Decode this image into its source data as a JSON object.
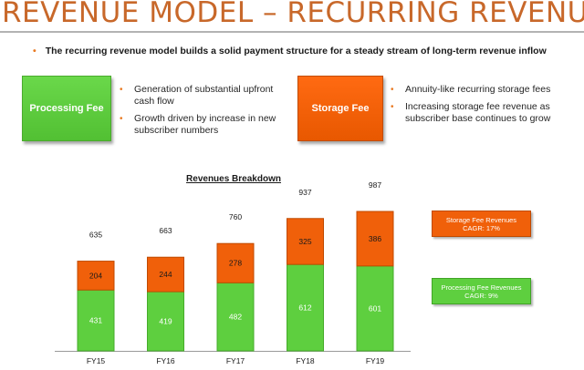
{
  "slide": {
    "title": "REVENUE MODEL – RECURRING REVENUE",
    "lead": "The recurring revenue model builds a solid payment structure for a steady stream of long-term revenue inflow"
  },
  "processing_fee": {
    "label": "Processing Fee",
    "points": [
      "Generation of substantial upfront cash flow",
      "Growth driven by increase in new subscriber numbers"
    ]
  },
  "storage_fee": {
    "label": "Storage Fee",
    "points": [
      "Annuity-like recurring storage fees",
      "Increasing storage fee revenue as subscriber base continues to grow"
    ]
  },
  "legend": {
    "storage": {
      "name": "Storage Fee Revenues",
      "cagr": "CAGR: 17%"
    },
    "processing": {
      "name": "Processing Fee Revenues",
      "cagr": "CAGR: 9%"
    }
  },
  "colors": {
    "accent": "#c8682a",
    "storage": "#f0600a",
    "processing": "#5ecf3f"
  },
  "chart_data": {
    "type": "bar",
    "stacked": true,
    "title": "Revenues Breakdown",
    "categories": [
      "FY15",
      "FY16",
      "FY17",
      "FY18",
      "FY19"
    ],
    "series": [
      {
        "name": "Processing Fee Revenues",
        "values": [
          431,
          419,
          482,
          612,
          601
        ],
        "color": "#5ecf3f"
      },
      {
        "name": "Storage Fee Revenues",
        "values": [
          204,
          244,
          278,
          325,
          386
        ],
        "color": "#f0600a"
      }
    ],
    "totals": [
      635,
      663,
      760,
      937,
      987
    ],
    "legend": "right"
  }
}
